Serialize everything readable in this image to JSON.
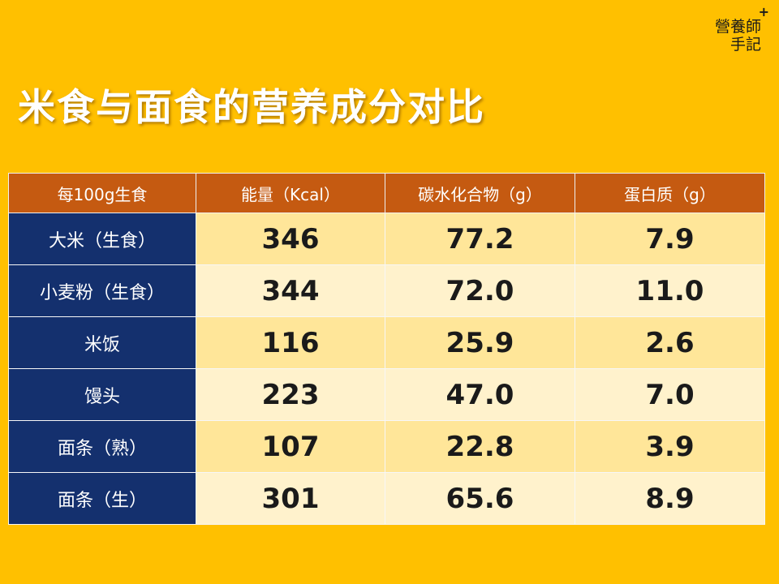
{
  "logo": {
    "mark": "+",
    "lines": [
      "營養師",
      "手記"
    ]
  },
  "header": {
    "title": "米食与面食的营养成分对比"
  },
  "table": {
    "columns": [
      "每100g生食",
      "能量（Kcal）",
      "碳水化合物（g）",
      "蛋白质（g）"
    ],
    "rows": [
      [
        "大米（生食）",
        "346",
        "77.2",
        "7.9"
      ],
      [
        "小麦粉（生食）",
        "344",
        "72.0",
        "11.0"
      ],
      [
        "米饭",
        "116",
        "25.9",
        "2.6"
      ],
      [
        "馒头",
        "223",
        "47.0",
        "7.0"
      ],
      [
        "面条（熟）",
        "107",
        "22.8",
        "3.9"
      ],
      [
        "面条（生）",
        "301",
        "65.6",
        "8.9"
      ]
    ]
  }
}
